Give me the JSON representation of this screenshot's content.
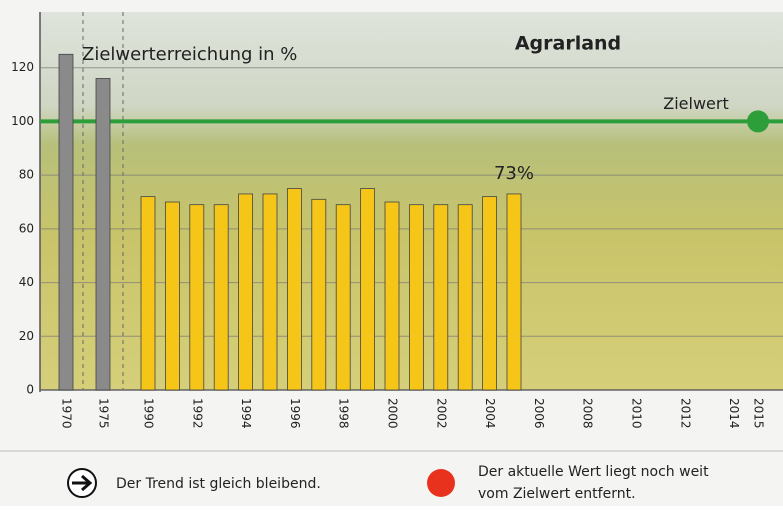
{
  "chart_data": {
    "type": "bar",
    "title": "Agrarland",
    "subtitle": "Zielwerterreichung in %",
    "categories": [
      "1970",
      "1975",
      "1990",
      null,
      "1992",
      null,
      "1994",
      null,
      "1996",
      null,
      "1998",
      null,
      "2000",
      null,
      "2002",
      null,
      "2004",
      null,
      "2006",
      null,
      "2008",
      null,
      "2010",
      null,
      "2012",
      null,
      "2014",
      "2015"
    ],
    "values": [
      125,
      116,
      72,
      70,
      69,
      69,
      73,
      73,
      75,
      71,
      69,
      75,
      70,
      69,
      69,
      69,
      72,
      73,
      null,
      null,
      null,
      null,
      null,
      null,
      null,
      null,
      null,
      null
    ],
    "value_labels": [
      null,
      null,
      null,
      null,
      null,
      null,
      null,
      null,
      null,
      null,
      null,
      null,
      null,
      null,
      null,
      null,
      null,
      "73%",
      null,
      null,
      null,
      null,
      null,
      null,
      null,
      null,
      null,
      null
    ],
    "colors": [
      "#8a8a8a",
      "#8a8a8a",
      "#f5c518",
      "#f5c518",
      "#f5c518",
      "#f5c518",
      "#f5c518",
      "#f5c518",
      "#f5c518",
      "#f5c518",
      "#f5c518",
      "#f5c518",
      "#f5c518",
      "#f5c518",
      "#f5c518",
      "#f5c518",
      "#f5c518",
      "#f5c518",
      "#f5c518",
      "#f5c518",
      "#f5c518",
      "#f5c518",
      "#f5c518",
      "#f5c518",
      "#f5c518",
      "#f5c518",
      "#f5c518",
      "#f5c518"
    ],
    "ylim": [
      0,
      140
    ],
    "yticks": [
      0,
      20,
      40,
      60,
      80,
      100,
      120
    ],
    "grid": true,
    "target": {
      "value": 100,
      "label": "Zielwert",
      "color": "#2e9e3a"
    }
  },
  "footer": {
    "trend": "Der Trend ist gleich bleibend.",
    "status": [
      "Der aktuelle Wert liegt noch weit",
      "vom Zielwert entfernt."
    ]
  }
}
